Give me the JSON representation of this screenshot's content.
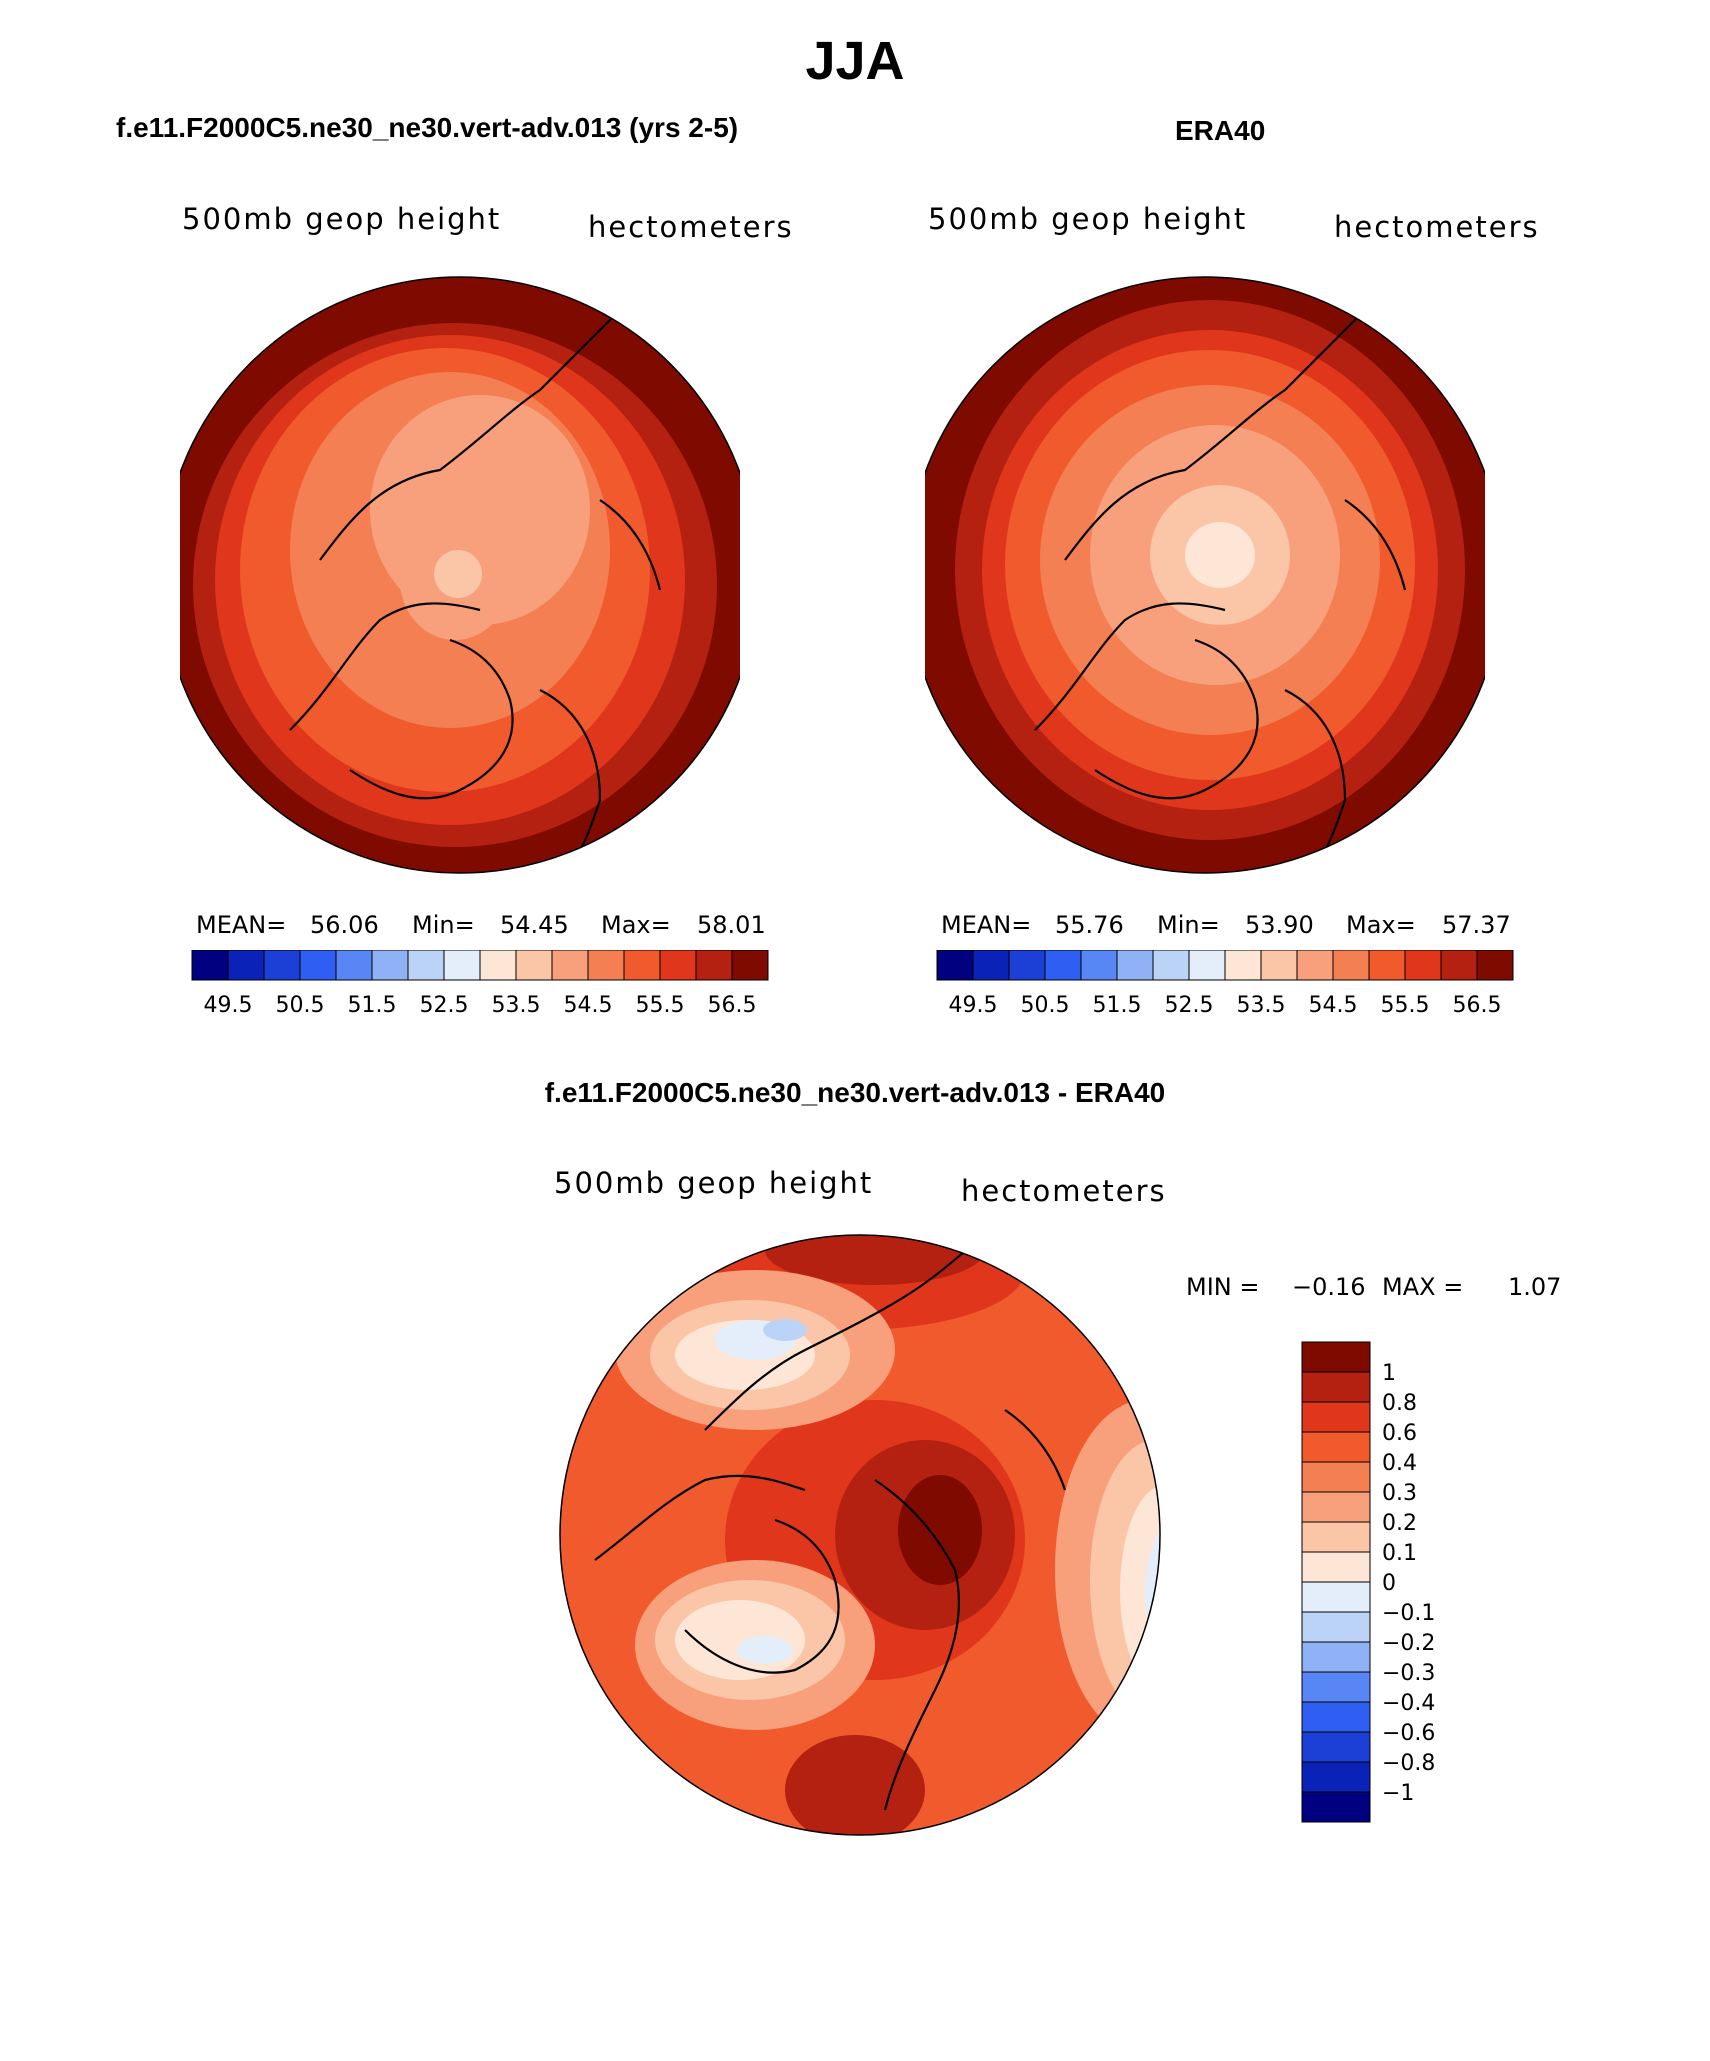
{
  "title": "JJA",
  "colors": {
    "scale": [
      "#000080",
      "#0a22b8",
      "#1c3fd6",
      "#2f5ef2",
      "#5887f5",
      "#8fb2f7",
      "#bcd3f8",
      "#e4eefb",
      "#fde6d6",
      "#fbc6a8",
      "#f8a07c",
      "#f47f53",
      "#f05a2c",
      "#e0371c",
      "#b52110",
      "#7f0a00"
    ],
    "coast": "#000000"
  },
  "panels": [
    {
      "title": "f.e11.F2000C5.ne30_ne30.vert-adv.013 (yrs 2-5)",
      "var_label": "500mb geop height",
      "units": "hectometers",
      "stats": {
        "mean_label": "MEAN=",
        "mean": "56.06",
        "min_label": "Min=",
        "min": "54.45",
        "max_label": "Max=",
        "max": "58.01"
      },
      "colorbar_ticks": [
        "49.5",
        "50.5",
        "51.5",
        "52.5",
        "53.5",
        "54.5",
        "55.5",
        "56.5"
      ]
    },
    {
      "title": "ERA40",
      "var_label": "500mb geop height",
      "units": "hectometers",
      "stats": {
        "mean_label": "MEAN=",
        "mean": "55.76",
        "min_label": "Min=",
        "min": "53.90",
        "max_label": "Max=",
        "max": "57.37"
      },
      "colorbar_ticks": [
        "49.5",
        "50.5",
        "51.5",
        "52.5",
        "53.5",
        "54.5",
        "55.5",
        "56.5"
      ]
    },
    {
      "title": "f.e11.F2000C5.ne30_ne30.vert-adv.013 - ERA40",
      "var_label": "500mb geop height",
      "units": "hectometers",
      "stats": {
        "min_label": "MIN =",
        "min": "−0.16",
        "max_label": "MAX =",
        "max": "1.07"
      },
      "colorbar_ticks": [
        "1",
        "0.8",
        "0.6",
        "0.4",
        "0.3",
        "0.2",
        "0.1",
        "0",
        "−0.1",
        "−0.2",
        "−0.3",
        "−0.4",
        "−0.6",
        "−0.8",
        "−1"
      ]
    }
  ],
  "chart_data": [
    {
      "type": "heatmap",
      "title": "f.e11.F2000C5.ne30_ne30.vert-adv.013 (yrs 2-5)",
      "projection": "north polar stereographic",
      "variable": "500mb geop height",
      "units": "hectometers",
      "mean": 56.06,
      "min": 54.45,
      "max": 58.01,
      "levels": [
        49.5,
        50.0,
        50.5,
        51.0,
        51.5,
        52.0,
        52.5,
        53.0,
        53.5,
        54.0,
        54.5,
        55.0,
        55.5,
        56.0,
        56.5
      ]
    },
    {
      "type": "heatmap",
      "title": "ERA40",
      "projection": "north polar stereographic",
      "variable": "500mb geop height",
      "units": "hectometers",
      "mean": 55.76,
      "min": 53.9,
      "max": 57.37,
      "levels": [
        49.5,
        50.0,
        50.5,
        51.0,
        51.5,
        52.0,
        52.5,
        53.0,
        53.5,
        54.0,
        54.5,
        55.0,
        55.5,
        56.0,
        56.5
      ]
    },
    {
      "type": "heatmap",
      "title": "f.e11.F2000C5.ne30_ne30.vert-adv.013 - ERA40",
      "projection": "north polar stereographic",
      "variable": "500mb geop height",
      "units": "hectometers",
      "min": -0.16,
      "max": 1.07,
      "levels": [
        -1,
        -0.8,
        -0.6,
        -0.4,
        -0.3,
        -0.2,
        -0.1,
        0,
        0.1,
        0.2,
        0.3,
        0.4,
        0.6,
        0.8,
        1
      ]
    }
  ]
}
